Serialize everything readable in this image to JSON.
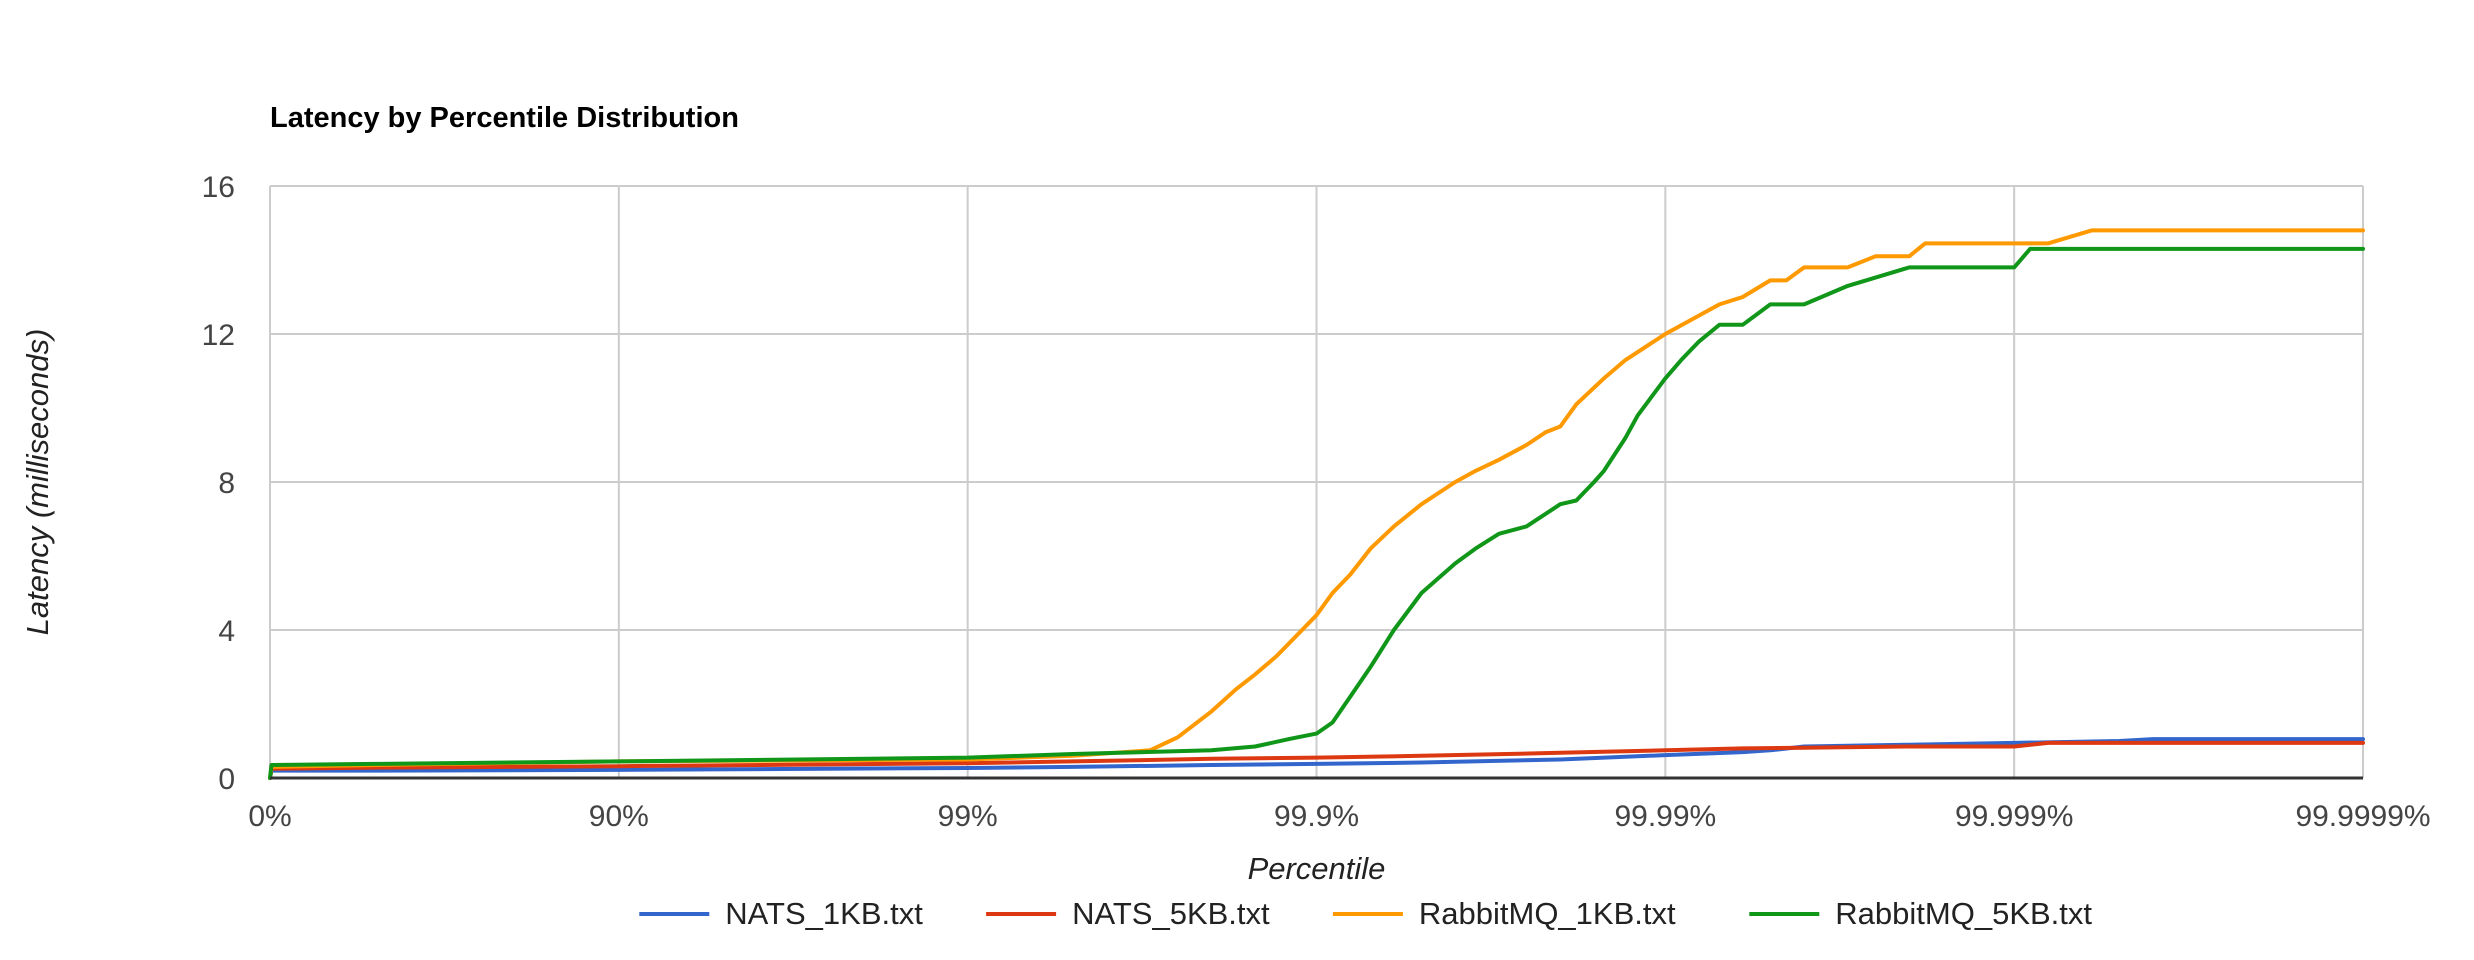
{
  "chart_data": {
    "type": "line",
    "title": "Latency by Percentile Distribution",
    "xlabel": "Percentile",
    "ylabel": "Latency (milliseconds)",
    "x_scale": "log-inverse-percentile",
    "x_ticks": [
      "0%",
      "90%",
      "99%",
      "99.9%",
      "99.99%",
      "99.999%",
      "99.9999%"
    ],
    "x_range": [
      "0%",
      "99.9999%"
    ],
    "ylim": [
      0,
      16
    ],
    "y_ticks": [
      0,
      4,
      8,
      12,
      16
    ],
    "grid": true,
    "legend_position": "bottom",
    "series": [
      {
        "name": "NATS_1KB.txt",
        "color": "#3366cc",
        "points": [
          [
            "0%",
            0
          ],
          [
            "1%",
            0.2
          ],
          [
            "50%",
            0.2
          ],
          [
            "90%",
            0.22
          ],
          [
            "99%",
            0.27
          ],
          [
            "99.5%",
            0.3
          ],
          [
            "99.8%",
            0.35
          ],
          [
            "99.9%",
            0.38
          ],
          [
            "99.95%",
            0.42
          ],
          [
            "99.98%",
            0.5
          ],
          [
            "99.99%",
            0.62
          ],
          [
            "99.994%",
            0.7
          ],
          [
            "99.995%",
            0.75
          ],
          [
            "99.996%",
            0.85
          ],
          [
            "99.998%",
            0.9
          ],
          [
            "99.999%",
            0.95
          ],
          [
            "99.9995%",
            1.0
          ],
          [
            "99.9996%",
            1.05
          ],
          [
            "99.9999%",
            1.05
          ]
        ]
      },
      {
        "name": "NATS_5KB.txt",
        "color": "#dc3912",
        "points": [
          [
            "0%",
            0
          ],
          [
            "1%",
            0.25
          ],
          [
            "50%",
            0.28
          ],
          [
            "90%",
            0.32
          ],
          [
            "99%",
            0.4
          ],
          [
            "99.5%",
            0.45
          ],
          [
            "99.8%",
            0.52
          ],
          [
            "99.9%",
            0.55
          ],
          [
            "99.95%",
            0.6
          ],
          [
            "99.98%",
            0.68
          ],
          [
            "99.99%",
            0.75
          ],
          [
            "99.994%",
            0.8
          ],
          [
            "99.996%",
            0.82
          ],
          [
            "99.998%",
            0.85
          ],
          [
            "99.999%",
            0.85
          ],
          [
            "99.9992%",
            0.95
          ],
          [
            "99.9999%",
            0.95
          ]
        ]
      },
      {
        "name": "RabbitMQ_1KB.txt",
        "color": "#ff9900",
        "points": [
          [
            "0%",
            0
          ],
          [
            "1%",
            0.3
          ],
          [
            "50%",
            0.35
          ],
          [
            "90%",
            0.45
          ],
          [
            "99%",
            0.5
          ],
          [
            "99.5%",
            0.6
          ],
          [
            "99.7%",
            0.75
          ],
          [
            "99.75%",
            1.1
          ],
          [
            "99.8%",
            1.8
          ],
          [
            "99.83%",
            2.4
          ],
          [
            "99.85%",
            2.8
          ],
          [
            "99.87%",
            3.3
          ],
          [
            "99.9%",
            4.4
          ],
          [
            "99.91%",
            5.0
          ],
          [
            "99.92%",
            5.5
          ],
          [
            "99.93%",
            6.2
          ],
          [
            "99.94%",
            6.8
          ],
          [
            "99.95%",
            7.4
          ],
          [
            "99.96%",
            8.0
          ],
          [
            "99.965%",
            8.3
          ],
          [
            "99.97%",
            8.6
          ],
          [
            "99.975%",
            9.0
          ],
          [
            "99.978%",
            9.35
          ],
          [
            "99.98%",
            9.5
          ],
          [
            "99.982%",
            10.1
          ],
          [
            "99.985%",
            10.8
          ],
          [
            "99.987%",
            11.3
          ],
          [
            "99.99%",
            12.0
          ],
          [
            "99.992%",
            12.5
          ],
          [
            "99.993%",
            12.8
          ],
          [
            "99.994%",
            13.0
          ],
          [
            "99.995%",
            13.45
          ],
          [
            "99.9955%",
            13.45
          ],
          [
            "99.996%",
            13.8
          ],
          [
            "99.997%",
            13.8
          ],
          [
            "99.9975%",
            14.1
          ],
          [
            "99.998%",
            14.1
          ],
          [
            "99.9982%",
            14.45
          ],
          [
            "99.999%",
            14.45
          ],
          [
            "99.9992%",
            14.45
          ],
          [
            "99.9994%",
            14.8
          ],
          [
            "99.9999%",
            14.8
          ]
        ]
      },
      {
        "name": "RabbitMQ_5KB.txt",
        "color": "#109618",
        "points": [
          [
            "0%",
            0
          ],
          [
            "1%",
            0.35
          ],
          [
            "50%",
            0.38
          ],
          [
            "90%",
            0.45
          ],
          [
            "99%",
            0.55
          ],
          [
            "99.5%",
            0.65
          ],
          [
            "99.8%",
            0.75
          ],
          [
            "99.85%",
            0.85
          ],
          [
            "99.88%",
            1.05
          ],
          [
            "99.9%",
            1.2
          ],
          [
            "99.91%",
            1.5
          ],
          [
            "99.92%",
            2.2
          ],
          [
            "99.93%",
            3.0
          ],
          [
            "99.94%",
            4.0
          ],
          [
            "99.95%",
            5.0
          ],
          [
            "99.96%",
            5.8
          ],
          [
            "99.965%",
            6.2
          ],
          [
            "99.97%",
            6.6
          ],
          [
            "99.975%",
            6.8
          ],
          [
            "99.98%",
            7.4
          ],
          [
            "99.982%",
            7.5
          ],
          [
            "99.984%",
            8.0
          ],
          [
            "99.985%",
            8.3
          ],
          [
            "99.987%",
            9.2
          ],
          [
            "99.988%",
            9.8
          ],
          [
            "99.99%",
            10.8
          ],
          [
            "99.991%",
            11.3
          ],
          [
            "99.992%",
            11.8
          ],
          [
            "99.993%",
            12.25
          ],
          [
            "99.994%",
            12.25
          ],
          [
            "99.995%",
            12.8
          ],
          [
            "99.996%",
            12.8
          ],
          [
            "99.997%",
            13.3
          ],
          [
            "99.998%",
            13.8
          ],
          [
            "99.999%",
            13.8
          ],
          [
            "99.9991%",
            14.3
          ],
          [
            "99.9999%",
            14.3
          ]
        ]
      }
    ]
  }
}
